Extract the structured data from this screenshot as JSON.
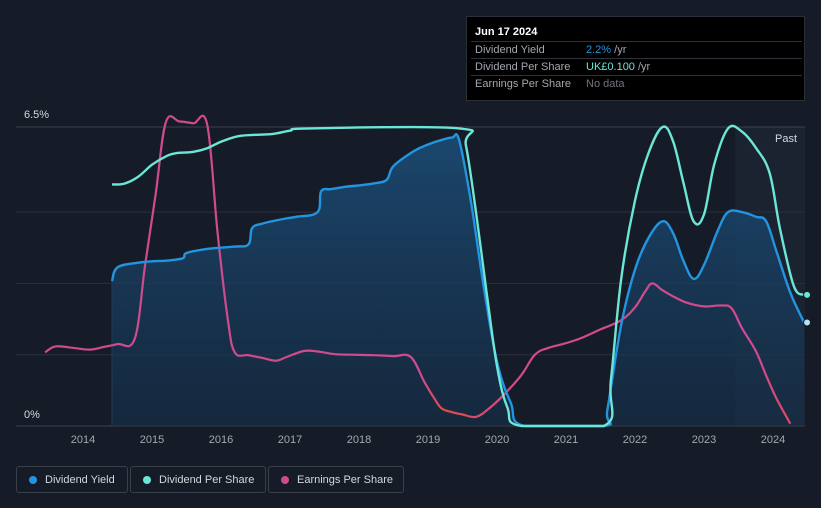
{
  "tooltip": {
    "date": "Jun 17 2024",
    "rows": [
      {
        "label": "Dividend Yield",
        "value": "2.2%",
        "unit": " /yr",
        "color": "#2394df"
      },
      {
        "label": "Dividend Per Share",
        "value": "UK£0.100",
        "unit": " /yr",
        "color": "#6ce6d6"
      },
      {
        "label": "Earnings Per Share",
        "value": "No data",
        "unit": "",
        "color": "#70757d"
      }
    ]
  },
  "legend": [
    {
      "label": "Dividend Yield",
      "color": "#2394df"
    },
    {
      "label": "Dividend Per Share",
      "color": "#6ce6d6"
    },
    {
      "label": "Earnings Per Share",
      "color": "#d04a8e"
    }
  ],
  "chart_data": {
    "type": "line",
    "x_range": [
      2013.4,
      2024.5
    ],
    "y_range": [
      0,
      6.5
    ],
    "y_tick_labels": [
      "6.5%",
      "0%"
    ],
    "x_ticks": [
      2014,
      2015,
      2016,
      2017,
      2018,
      2019,
      2020,
      2021,
      2022,
      2023,
      2024
    ],
    "past_label": "Past",
    "past_start": 2023.45,
    "series": [
      {
        "name": "Dividend Yield",
        "color": "#2394df",
        "filled": true,
        "points": [
          [
            2014.42,
            3.15
          ],
          [
            2014.5,
            3.45
          ],
          [
            2014.8,
            3.55
          ],
          [
            2015.0,
            3.58
          ],
          [
            2015.25,
            3.6
          ],
          [
            2015.45,
            3.65
          ],
          [
            2015.5,
            3.76
          ],
          [
            2015.8,
            3.85
          ],
          [
            2016.2,
            3.9
          ],
          [
            2016.4,
            3.95
          ],
          [
            2016.45,
            4.3
          ],
          [
            2016.6,
            4.4
          ],
          [
            2016.9,
            4.5
          ],
          [
            2017.1,
            4.55
          ],
          [
            2017.4,
            4.65
          ],
          [
            2017.45,
            5.1
          ],
          [
            2017.6,
            5.15
          ],
          [
            2017.8,
            5.2
          ],
          [
            2018.0,
            5.23
          ],
          [
            2018.2,
            5.27
          ],
          [
            2018.4,
            5.35
          ],
          [
            2018.5,
            5.65
          ],
          [
            2018.8,
            5.98
          ],
          [
            2019.0,
            6.12
          ],
          [
            2019.2,
            6.22
          ],
          [
            2019.35,
            6.27
          ],
          [
            2019.45,
            6.22
          ],
          [
            2019.62,
            4.9
          ],
          [
            2019.8,
            3.1
          ],
          [
            2020.0,
            1.4
          ],
          [
            2020.2,
            0.5
          ],
          [
            2020.4,
            0
          ],
          [
            2021.55,
            0
          ],
          [
            2021.6,
            0.35
          ],
          [
            2021.8,
            2.2
          ],
          [
            2022.0,
            3.4
          ],
          [
            2022.2,
            4.1
          ],
          [
            2022.4,
            4.45
          ],
          [
            2022.55,
            4.2
          ],
          [
            2022.7,
            3.6
          ],
          [
            2022.85,
            3.2
          ],
          [
            2023.0,
            3.5
          ],
          [
            2023.2,
            4.25
          ],
          [
            2023.35,
            4.65
          ],
          [
            2023.55,
            4.65
          ],
          [
            2023.75,
            4.55
          ],
          [
            2023.9,
            4.45
          ],
          [
            2024.05,
            3.8
          ],
          [
            2024.25,
            2.9
          ],
          [
            2024.45,
            2.25
          ]
        ]
      },
      {
        "name": "Dividend Per Share",
        "color": "#6ce6d6",
        "filled": false,
        "points": [
          [
            2014.42,
            5.25
          ],
          [
            2014.6,
            5.27
          ],
          [
            2014.8,
            5.42
          ],
          [
            2015.0,
            5.68
          ],
          [
            2015.2,
            5.86
          ],
          [
            2015.35,
            5.93
          ],
          [
            2015.6,
            5.96
          ],
          [
            2015.8,
            6.04
          ],
          [
            2016.0,
            6.18
          ],
          [
            2016.25,
            6.3
          ],
          [
            2016.5,
            6.33
          ],
          [
            2016.75,
            6.35
          ],
          [
            2017.0,
            6.42
          ],
          [
            2017.3,
            6.47
          ],
          [
            2019.45,
            6.47
          ],
          [
            2019.55,
            6.1
          ],
          [
            2019.7,
            4.6
          ],
          [
            2019.85,
            2.9
          ],
          [
            2020.0,
            1.3
          ],
          [
            2020.15,
            0.4
          ],
          [
            2020.35,
            0
          ],
          [
            2021.55,
            0
          ],
          [
            2021.65,
            1.0
          ],
          [
            2021.8,
            3.2
          ],
          [
            2022.0,
            4.9
          ],
          [
            2022.2,
            5.95
          ],
          [
            2022.4,
            6.5
          ],
          [
            2022.55,
            6.2
          ],
          [
            2022.7,
            5.3
          ],
          [
            2022.85,
            4.45
          ],
          [
            2023.0,
            4.6
          ],
          [
            2023.15,
            5.7
          ],
          [
            2023.35,
            6.47
          ],
          [
            2023.55,
            6.4
          ],
          [
            2023.75,
            6.05
          ],
          [
            2023.95,
            5.5
          ],
          [
            2024.1,
            4.3
          ],
          [
            2024.3,
            3.05
          ],
          [
            2024.45,
            2.85
          ]
        ]
      },
      {
        "name": "Earnings Per Share",
        "color": "#d04a8e",
        "filled": false,
        "gradient_tail": {
          "from": 2019.0,
          "color": "#e24b4b"
        },
        "points": [
          [
            2013.45,
            1.6
          ],
          [
            2013.6,
            1.73
          ],
          [
            2013.85,
            1.7
          ],
          [
            2014.1,
            1.66
          ],
          [
            2014.3,
            1.72
          ],
          [
            2014.5,
            1.78
          ],
          [
            2014.75,
            1.9
          ],
          [
            2014.9,
            3.5
          ],
          [
            2015.05,
            5.0
          ],
          [
            2015.2,
            6.6
          ],
          [
            2015.4,
            6.62
          ],
          [
            2015.6,
            6.58
          ],
          [
            2015.8,
            6.55
          ],
          [
            2015.95,
            4.2
          ],
          [
            2016.1,
            2.3
          ],
          [
            2016.2,
            1.6
          ],
          [
            2016.4,
            1.54
          ],
          [
            2016.6,
            1.48
          ],
          [
            2016.8,
            1.42
          ],
          [
            2016.95,
            1.5
          ],
          [
            2017.2,
            1.63
          ],
          [
            2017.4,
            1.62
          ],
          [
            2017.65,
            1.56
          ],
          [
            2017.9,
            1.55
          ],
          [
            2018.2,
            1.54
          ],
          [
            2018.5,
            1.52
          ],
          [
            2018.75,
            1.5
          ],
          [
            2018.95,
            0.95
          ],
          [
            2019.1,
            0.58
          ],
          [
            2019.2,
            0.38
          ],
          [
            2019.35,
            0.3
          ],
          [
            2019.5,
            0.25
          ],
          [
            2019.7,
            0.2
          ],
          [
            2019.9,
            0.4
          ],
          [
            2020.1,
            0.68
          ],
          [
            2020.35,
            1.1
          ],
          [
            2020.55,
            1.55
          ],
          [
            2020.75,
            1.7
          ],
          [
            2020.95,
            1.78
          ],
          [
            2021.2,
            1.9
          ],
          [
            2021.5,
            2.1
          ],
          [
            2021.8,
            2.3
          ],
          [
            2022.0,
            2.58
          ],
          [
            2022.15,
            2.93
          ],
          [
            2022.25,
            3.1
          ],
          [
            2022.4,
            2.95
          ],
          [
            2022.55,
            2.82
          ],
          [
            2022.75,
            2.68
          ],
          [
            2023.0,
            2.6
          ],
          [
            2023.25,
            2.62
          ],
          [
            2023.4,
            2.56
          ],
          [
            2023.55,
            2.13
          ],
          [
            2023.75,
            1.63
          ],
          [
            2023.9,
            1.1
          ],
          [
            2024.05,
            0.6
          ],
          [
            2024.25,
            0.05
          ]
        ]
      }
    ]
  }
}
